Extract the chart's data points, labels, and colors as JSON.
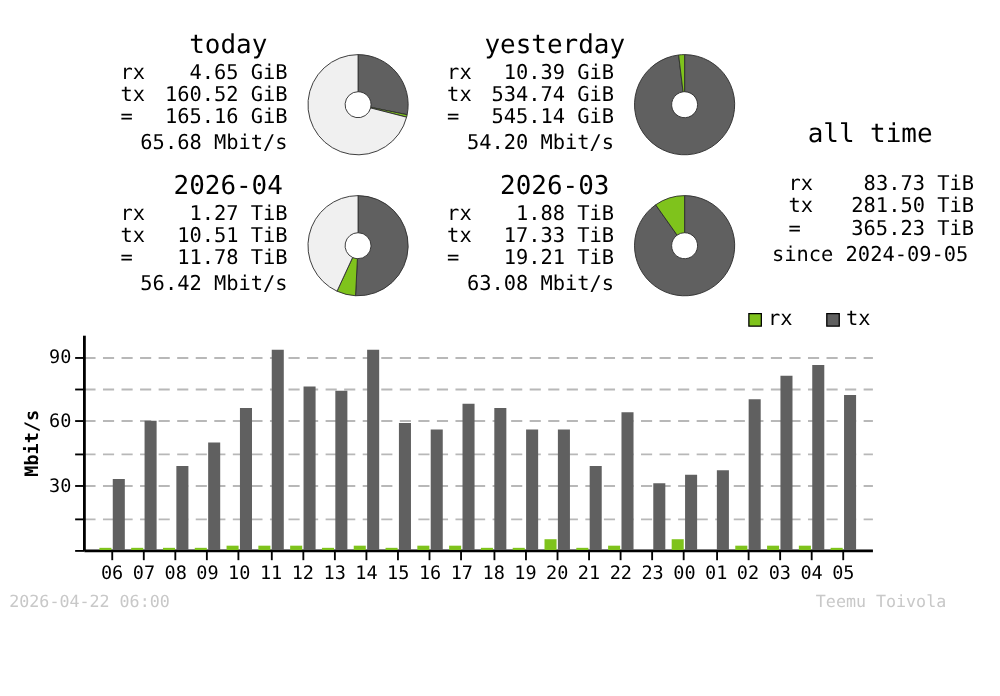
{
  "chart_data": [
    {
      "type": "donut",
      "title": "today",
      "categories": [
        null,
        null,
        null
      ],
      "values": [
        28.2,
        0.8,
        71.0
      ],
      "colors": [
        "#606060",
        "#7fc31c",
        "#f0f0f0"
      ],
      "annotations": [
        "rx",
        "4.65 GiB",
        "tx",
        "160.52 GiB",
        "=",
        "165.16 GiB",
        "65.68 Mbit/s"
      ]
    },
    {
      "type": "donut",
      "title": "yesterday",
      "categories": [
        null,
        null
      ],
      "values": [
        98.1,
        1.9
      ],
      "colors": [
        "#606060",
        "#7fc31c"
      ],
      "annotations": [
        "rx",
        "10.39 GiB",
        "tx",
        "534.74 GiB",
        "=",
        "545.14 GiB",
        "54.20 Mbit/s"
      ]
    },
    {
      "type": "other",
      "title": "all time",
      "annotations": [
        "rx",
        "83.73 TiB",
        "tx",
        "281.50 TiB",
        "=",
        "365.23 TiB",
        "since 2024-09-05"
      ]
    },
    {
      "type": "donut",
      "title": "2026-04",
      "categories": [
        null,
        null,
        null
      ],
      "values": [
        50.8,
        6.1,
        43.1
      ],
      "colors": [
        "#606060",
        "#7fc31c",
        "#f0f0f0"
      ],
      "annotations": [
        "rx",
        "1.27 TiB",
        "tx",
        "10.51 TiB",
        "=",
        "11.78 TiB",
        "56.42 Mbit/s"
      ]
    },
    {
      "type": "donut",
      "title": "2026-03",
      "categories": [
        null,
        null
      ],
      "values": [
        90.2,
        9.8
      ],
      "colors": [
        "#606060",
        "#7fc31c"
      ],
      "annotations": [
        "rx",
        "1.88 TiB",
        "tx",
        "17.33 TiB",
        "=",
        "19.21 TiB",
        "63.08 Mbit/s"
      ]
    },
    {
      "type": "bar",
      "ylabel": "Mbit/s",
      "ylim": [
        0,
        100
      ],
      "grid": "y",
      "legend": "top right",
      "yticks": [
        {
          "value": 0,
          "label": null
        },
        {
          "value": 15,
          "label": null
        },
        30,
        {
          "value": 45,
          "label": null
        },
        60,
        {
          "value": 75,
          "label": null
        },
        90
      ],
      "categories": [
        "06",
        "07",
        "08",
        "09",
        "10",
        "11",
        "12",
        "13",
        "14",
        "15",
        "16",
        "17",
        "18",
        "19",
        "20",
        "21",
        "22",
        "23",
        "00",
        "01",
        "02",
        "03",
        "04",
        "05"
      ],
      "series": [
        {
          "name": "rx",
          "color": "#7fc31c",
          "values": [
            1,
            1,
            1,
            1,
            2,
            2,
            2,
            1,
            2,
            1,
            2,
            2,
            1,
            1,
            5,
            1,
            2,
            0,
            5,
            0,
            2,
            2,
            2,
            1
          ]
        },
        {
          "name": "tx",
          "color": "#606060",
          "values": [
            33,
            60,
            39,
            50,
            66,
            93,
            76,
            74,
            93,
            59,
            56,
            68,
            66,
            56,
            56,
            39,
            64,
            31,
            35,
            37,
            70,
            81,
            86,
            72
          ]
        }
      ],
      "annotations": [
        "2026-04-22 06:00",
        "Teemu Toivola"
      ]
    }
  ]
}
